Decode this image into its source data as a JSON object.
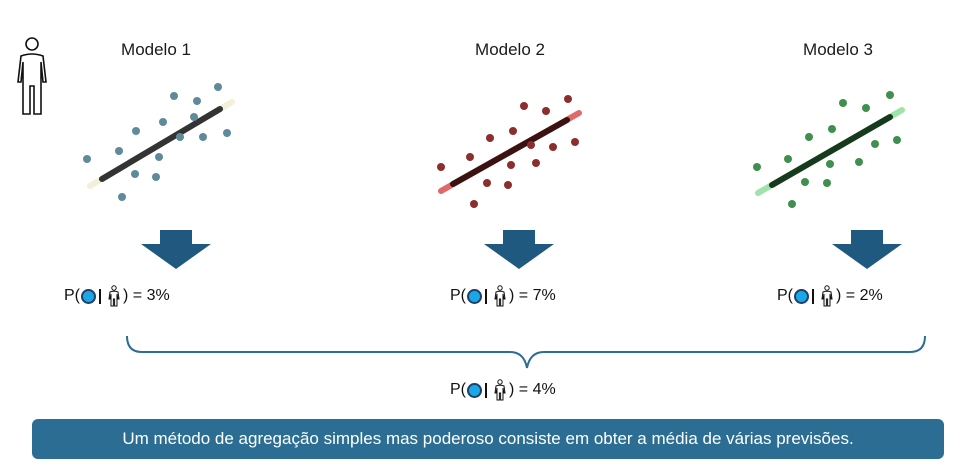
{
  "models": [
    {
      "title": "Modelo 1",
      "probability": "3%"
    },
    {
      "title": "Modelo 2",
      "probability": "7%"
    },
    {
      "title": "Modelo 3",
      "probability": "2%"
    }
  ],
  "aggregate": {
    "probability": "4%"
  },
  "prob_prefix": "P(",
  "prob_suffix": ") =",
  "banner": "Um método de agregação simples mas poderoso consiste em obter a média de várias previsões.",
  "colors": {
    "model1_points": "#5f8a9a",
    "model2_points": "#8b2e2e",
    "model3_points": "#3f8f4e",
    "arrow": "#20597f",
    "bracket": "#2c6e93",
    "banner_bg": "#2c6e93",
    "probability_dot": "#1aa7e8"
  },
  "icons": [
    "person-icon",
    "down-arrow-icon",
    "probability-dot-icon"
  ]
}
